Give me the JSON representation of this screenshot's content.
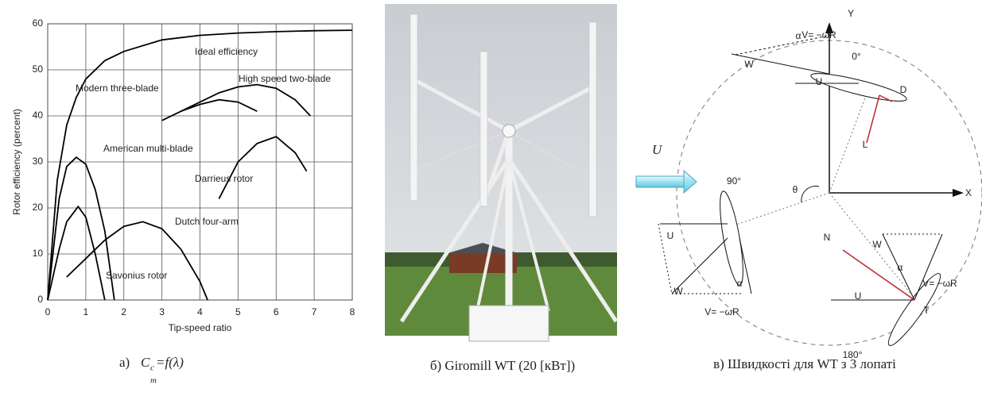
{
  "chart_data": {
    "type": "line",
    "x_label": "Tip-speed ratio",
    "y_label": "Rotor efficiency (percent)",
    "xlim": [
      0,
      8
    ],
    "xticks": [
      0,
      1,
      2,
      3,
      4,
      5,
      6,
      7,
      8
    ],
    "ylim": [
      0,
      60
    ],
    "yticks": [
      0,
      10,
      20,
      30,
      40,
      50,
      60
    ],
    "grid": true,
    "series": [
      {
        "name": "Ideal efficiency",
        "color": "#000000",
        "x": [
          0,
          0.25,
          0.5,
          0.75,
          1,
          1.5,
          2,
          3,
          4,
          5,
          6,
          7,
          8
        ],
        "values": [
          0,
          26,
          38,
          44,
          48,
          52,
          54,
          56.5,
          57.5,
          58,
          58.3,
          58.5,
          58.6
        ]
      },
      {
        "name": "Modern three-blade",
        "color": "#000000",
        "x": [
          3,
          3.5,
          4,
          4.5,
          5,
          5.5
        ],
        "values": [
          39,
          41,
          42.5,
          43.5,
          43,
          41
        ]
      },
      {
        "name": "High speed two-blade",
        "color": "#000000",
        "x": [
          3.5,
          4,
          4.5,
          5,
          5.5,
          6,
          6.5,
          6.9
        ],
        "values": [
          41,
          43,
          45,
          46.3,
          46.8,
          46,
          43.5,
          40
        ]
      },
      {
        "name": "American multi-blade",
        "color": "#000000",
        "x": [
          0,
          0.3,
          0.5,
          0.75,
          1,
          1.25,
          1.5,
          1.75
        ],
        "values": [
          0,
          22,
          29,
          31,
          29.5,
          24,
          15,
          0
        ]
      },
      {
        "name": "Darrieus rotor",
        "color": "#000000",
        "x": [
          4.5,
          5,
          5.5,
          6,
          6.5,
          6.8
        ],
        "values": [
          22,
          30,
          34,
          35.5,
          32,
          28
        ]
      },
      {
        "name": "Dutch four-arm",
        "color": "#000000",
        "x": [
          0.5,
          1,
          1.5,
          2,
          2.5,
          3,
          3.5,
          4,
          4.2
        ],
        "values": [
          5,
          9,
          13,
          16,
          17,
          15.5,
          11,
          4,
          0
        ]
      },
      {
        "name": "Savonius rotor",
        "color": "#000000",
        "x": [
          0,
          0.3,
          0.5,
          0.8,
          1,
          1.25,
          1.5
        ],
        "values": [
          0,
          11,
          17,
          20.3,
          18,
          10,
          0
        ]
      }
    ]
  },
  "captions": {
    "a": {
      "prefix": "а)",
      "symbol": "C",
      "subscript": "c",
      "formula": "=f(λ)",
      "below": "m"
    },
    "b": "б) Giromill WT (20 [кВт])",
    "c": "в) Швидкості для WT з 3 лопаті"
  },
  "diagram": {
    "flow_label": "U",
    "labels": [
      "Y",
      "V= −ωR",
      "α",
      "0°",
      "D",
      "W",
      "U",
      "L",
      "90°",
      "θ",
      "X",
      "U",
      "α",
      "W",
      "V= −ωR",
      "N",
      "W",
      "α",
      "V= −ωR",
      "U",
      "T",
      "180°"
    ]
  }
}
